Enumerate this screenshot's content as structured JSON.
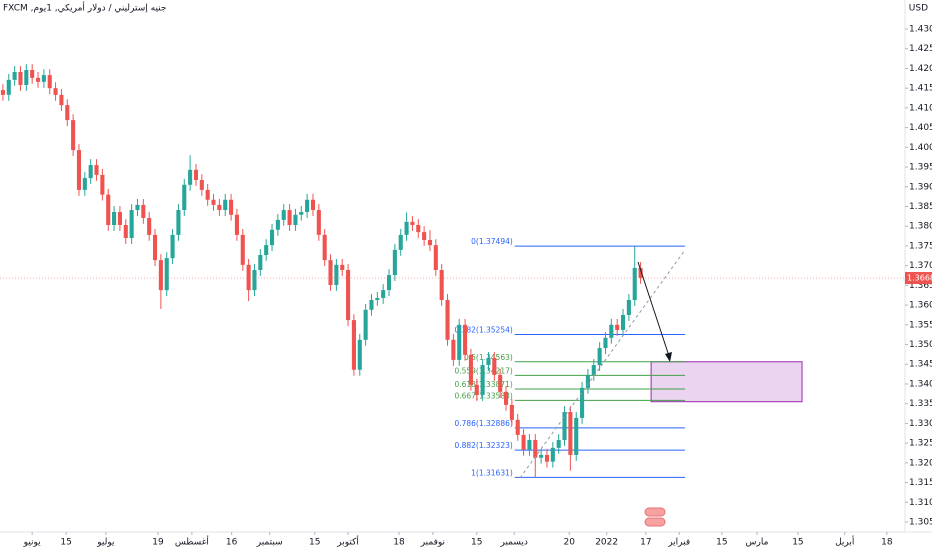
{
  "chart_data": {
    "type": "candlestick",
    "title": "جنيه إسترليني / دولار أمريكي, 1يوم, FXCM",
    "currency": "USD",
    "up_color": "#26a69a",
    "down_color": "#ef5350",
    "open": [
      1.4145,
      1.4133,
      1.4171,
      1.4191,
      1.4158,
      1.4196,
      1.4176,
      1.4166,
      1.4183,
      1.415,
      1.4133,
      1.4107,
      1.4069,
      1.3993,
      1.3892,
      1.3922,
      1.3955,
      1.393,
      1.388,
      1.3803,
      1.3836,
      1.3803,
      1.377,
      1.3841,
      1.3854,
      1.3821,
      1.3778,
      1.3714,
      1.3638,
      1.3719,
      1.3778,
      1.3841,
      1.3905,
      1.3943,
      1.3917,
      1.3892,
      1.3867,
      1.3854,
      1.3841,
      1.3867,
      1.3829,
      1.3778,
      1.3702,
      1.3638,
      1.3689,
      1.3727,
      1.3752,
      1.3791,
      1.3816,
      1.3841,
      1.3803,
      1.3829,
      1.3836,
      1.3867,
      1.3841,
      1.3778,
      1.3714,
      1.3651,
      1.3702,
      1.3689,
      1.3562,
      1.3436,
      1.3512,
      1.3588,
      1.3613,
      1.3618,
      1.3638,
      1.3676,
      1.374,
      1.3778,
      1.3811,
      1.3803,
      1.3785,
      1.3765,
      1.3752,
      1.3689,
      1.3613,
      1.3512,
      1.3461,
      1.355,
      1.3474,
      1.3398,
      1.3372,
      1.3448,
      1.3466,
      1.3423,
      1.338,
      1.3347,
      1.3309,
      1.3271,
      1.3233,
      1.3258,
      1.3213,
      1.322,
      1.3203,
      1.3238,
      1.3258,
      1.3329,
      1.322,
      1.3314,
      1.339,
      1.3423,
      1.3448,
      1.3491,
      1.3517,
      1.355,
      1.3537,
      1.3575,
      1.3613,
      1.3694
    ],
    "high": [
      1.416,
      1.4186,
      1.4206,
      1.4206,
      1.4211,
      1.4211,
      1.4191,
      1.4198,
      1.4198,
      1.4165,
      1.4148,
      1.4122,
      1.4084,
      1.4008,
      1.3937,
      1.397,
      1.397,
      1.3945,
      1.3895,
      1.3851,
      1.3851,
      1.3818,
      1.3856,
      1.3869,
      1.3869,
      1.3836,
      1.3793,
      1.3729,
      1.3734,
      1.3793,
      1.3856,
      1.392,
      1.398,
      1.3958,
      1.3932,
      1.3907,
      1.3882,
      1.3869,
      1.3882,
      1.3882,
      1.3844,
      1.3793,
      1.3717,
      1.3704,
      1.3742,
      1.3767,
      1.3806,
      1.3831,
      1.3856,
      1.3856,
      1.3844,
      1.3851,
      1.3882,
      1.3882,
      1.3856,
      1.3793,
      1.3729,
      1.3717,
      1.3717,
      1.3704,
      1.3577,
      1.3527,
      1.3603,
      1.3628,
      1.3633,
      1.3653,
      1.3691,
      1.3755,
      1.3793,
      1.3835,
      1.3826,
      1.3818,
      1.38,
      1.379,
      1.3767,
      1.3704,
      1.3628,
      1.3527,
      1.3565,
      1.3565,
      1.3489,
      1.3413,
      1.3463,
      1.3481,
      1.3481,
      1.3438,
      1.3395,
      1.3362,
      1.3324,
      1.3286,
      1.3273,
      1.3273,
      1.3235,
      1.3235,
      1.3253,
      1.3273,
      1.3344,
      1.3344,
      1.3329,
      1.3405,
      1.3438,
      1.3463,
      1.3506,
      1.3532,
      1.3565,
      1.3565,
      1.359,
      1.3628,
      1.3749,
      1.3709
    ],
    "low": [
      1.4118,
      1.4118,
      1.4156,
      1.4143,
      1.4143,
      1.4161,
      1.4151,
      1.4151,
      1.4135,
      1.4118,
      1.4092,
      1.4054,
      1.3978,
      1.3877,
      1.3877,
      1.3907,
      1.3915,
      1.3865,
      1.3788,
      1.3788,
      1.3788,
      1.3755,
      1.3755,
      1.3826,
      1.3806,
      1.3763,
      1.3699,
      1.359,
      1.3623,
      1.3704,
      1.3763,
      1.3826,
      1.389,
      1.3902,
      1.3877,
      1.3852,
      1.3839,
      1.3826,
      1.3826,
      1.3814,
      1.3763,
      1.3687,
      1.361,
      1.3623,
      1.3674,
      1.3712,
      1.3737,
      1.3776,
      1.3801,
      1.3788,
      1.3788,
      1.3814,
      1.3821,
      1.3826,
      1.3763,
      1.3699,
      1.3636,
      1.3636,
      1.3674,
      1.3547,
      1.3421,
      1.3421,
      1.3497,
      1.3573,
      1.3598,
      1.3603,
      1.3623,
      1.3661,
      1.3725,
      1.3763,
      1.3788,
      1.377,
      1.375,
      1.3737,
      1.3674,
      1.3598,
      1.3497,
      1.3446,
      1.3446,
      1.3459,
      1.3383,
      1.3357,
      1.3357,
      1.3433,
      1.3408,
      1.3365,
      1.3332,
      1.3294,
      1.3256,
      1.3218,
      1.3218,
      1.3163,
      1.3198,
      1.3188,
      1.3188,
      1.3223,
      1.3243,
      1.318,
      1.3205,
      1.3299,
      1.3375,
      1.3408,
      1.3433,
      1.3476,
      1.3502,
      1.3522,
      1.3522,
      1.356,
      1.3598,
      1.3654
    ],
    "close": [
      1.4133,
      1.4171,
      1.4191,
      1.4158,
      1.4196,
      1.4176,
      1.4166,
      1.4183,
      1.415,
      1.4133,
      1.4107,
      1.4069,
      1.3993,
      1.3892,
      1.3922,
      1.3955,
      1.393,
      1.388,
      1.3803,
      1.3836,
      1.3803,
      1.377,
      1.3841,
      1.3854,
      1.3821,
      1.3778,
      1.3714,
      1.3638,
      1.3719,
      1.3778,
      1.3841,
      1.3905,
      1.3943,
      1.3917,
      1.3892,
      1.3867,
      1.3854,
      1.3841,
      1.3867,
      1.3829,
      1.3778,
      1.3702,
      1.3638,
      1.3689,
      1.3727,
      1.3752,
      1.3791,
      1.3816,
      1.3841,
      1.3803,
      1.3829,
      1.3836,
      1.3867,
      1.3841,
      1.3778,
      1.3714,
      1.3651,
      1.3702,
      1.3689,
      1.3562,
      1.3436,
      1.3512,
      1.3588,
      1.3613,
      1.3618,
      1.3638,
      1.3676,
      1.374,
      1.3778,
      1.3811,
      1.3803,
      1.3785,
      1.3765,
      1.3752,
      1.3689,
      1.3613,
      1.3512,
      1.3461,
      1.355,
      1.3474,
      1.3398,
      1.3372,
      1.3448,
      1.3466,
      1.3423,
      1.338,
      1.3347,
      1.3309,
      1.3271,
      1.3233,
      1.3258,
      1.3213,
      1.322,
      1.3203,
      1.3238,
      1.3258,
      1.3329,
      1.322,
      1.3314,
      1.339,
      1.3423,
      1.3448,
      1.3491,
      1.3517,
      1.355,
      1.3537,
      1.3575,
      1.3613,
      1.3694,
      1.3669
    ],
    "xlim": [
      -0.5,
      154.2
    ],
    "ylim": [
      1.30044,
      1.43735
    ],
    "xticks": [
      {
        "value": 5,
        "label": "يونيو"
      },
      {
        "value": 10.8,
        "label": "15"
      },
      {
        "value": 17.6,
        "label": "يوليو"
      },
      {
        "value": 26.5,
        "label": "19"
      },
      {
        "value": 32.3,
        "label": "أغسطس"
      },
      {
        "value": 39.1,
        "label": "16"
      },
      {
        "value": 45.6,
        "label": "سبتمبر"
      },
      {
        "value": 53.3,
        "label": "15"
      },
      {
        "value": 59,
        "label": "أكتوبر"
      },
      {
        "value": 67.7,
        "label": "18"
      },
      {
        "value": 73.5,
        "label": "نوفمبر"
      },
      {
        "value": 81,
        "label": "15"
      },
      {
        "value": 87.4,
        "label": "ديسمبر"
      },
      {
        "value": 96.8,
        "label": "20"
      },
      {
        "value": 103.2,
        "label": "2022"
      },
      {
        "value": 109.9,
        "label": "17"
      },
      {
        "value": 115.6,
        "label": "فبراير"
      },
      {
        "value": 122.9,
        "label": "15"
      },
      {
        "value": 128.9,
        "label": "مارس"
      },
      {
        "value": 135.9,
        "label": "15"
      },
      {
        "value": 143.9,
        "label": "أبريل"
      },
      {
        "value": 151.1,
        "label": "18"
      }
    ],
    "yticks": [
      {
        "value": 1.305,
        "label": "1.30500"
      },
      {
        "value": 1.31,
        "label": "1.31000"
      },
      {
        "value": 1.315,
        "label": "1.31500"
      },
      {
        "value": 1.32,
        "label": "1.32000"
      },
      {
        "value": 1.325,
        "label": "1.32500"
      },
      {
        "value": 1.33,
        "label": "1.33000"
      },
      {
        "value": 1.335,
        "label": "1.33500"
      },
      {
        "value": 1.34,
        "label": "1.34000"
      },
      {
        "value": 1.345,
        "label": "1.34500"
      },
      {
        "value": 1.35,
        "label": "1.35000"
      },
      {
        "value": 1.355,
        "label": "1.35500"
      },
      {
        "value": 1.36,
        "label": "1.36000"
      },
      {
        "value": 1.365,
        "label": "1.36500"
      },
      {
        "value": 1.37,
        "label": "1.37000"
      },
      {
        "value": 1.375,
        "label": "1.37500"
      },
      {
        "value": 1.38,
        "label": "1.38000"
      },
      {
        "value": 1.385,
        "label": "1.38500"
      },
      {
        "value": 1.39,
        "label": "1.39000"
      },
      {
        "value": 1.395,
        "label": "1.39500"
      },
      {
        "value": 1.4,
        "label": "1.40000"
      },
      {
        "value": 1.405,
        "label": "1.40500"
      },
      {
        "value": 1.41,
        "label": "1.41000"
      },
      {
        "value": 1.415,
        "label": "1.41500"
      },
      {
        "value": 1.42,
        "label": "1.42000"
      },
      {
        "value": 1.425,
        "label": "1.42500"
      },
      {
        "value": 1.43,
        "label": "1.43000"
      }
    ],
    "last_price": {
      "value": 1.36686,
      "label": "1.36686"
    },
    "fibonacci": {
      "x": [
        87.5,
        116.6
      ],
      "levels": [
        {
          "label": "0(1.37494)",
          "value": 1.37494,
          "color": "#2962ff"
        },
        {
          "label": "0.382(1.35254)",
          "value": 1.35254,
          "color": "#2962ff"
        },
        {
          "label": "0.5(1.34563)",
          "value": 1.34563,
          "color": "#43a047"
        },
        {
          "label": "0.559(1.34217)",
          "value": 1.34217,
          "color": "#43a047"
        },
        {
          "label": "0.618(1.33871)",
          "value": 1.33871,
          "color": "#43a047"
        },
        {
          "label": "0.667(1.33583)",
          "value": 1.33583,
          "color": "#43a047"
        },
        {
          "label": "0.786(1.32886)",
          "value": 1.32886,
          "color": "#2962ff"
        },
        {
          "label": "0.882(1.32323)",
          "value": 1.32323,
          "color": "#2962ff"
        },
        {
          "label": "1(1.31631)",
          "value": 1.31631,
          "color": "#2962ff"
        }
      ]
    },
    "zone": {
      "x": [
        110.8,
        136.6
      ],
      "ylim": [
        1.34563,
        1.3355
      ],
      "color": "#9c27b0"
    }
  }
}
